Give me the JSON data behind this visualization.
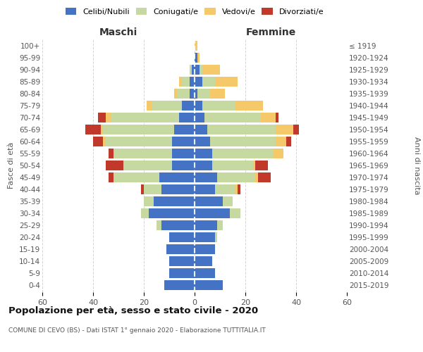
{
  "age_groups": [
    "0-4",
    "5-9",
    "10-14",
    "15-19",
    "20-24",
    "25-29",
    "30-34",
    "35-39",
    "40-44",
    "45-49",
    "50-54",
    "55-59",
    "60-64",
    "65-69",
    "70-74",
    "75-79",
    "80-84",
    "85-89",
    "90-94",
    "95-99",
    "100+"
  ],
  "birth_years": [
    "2015-2019",
    "2010-2014",
    "2005-2009",
    "2000-2004",
    "1995-1999",
    "1990-1994",
    "1985-1989",
    "1980-1984",
    "1975-1979",
    "1970-1974",
    "1965-1969",
    "1960-1964",
    "1955-1959",
    "1950-1954",
    "1945-1949",
    "1940-1944",
    "1935-1939",
    "1930-1934",
    "1925-1929",
    "1920-1924",
    "≤ 1919"
  ],
  "colors": {
    "celibi": "#4472C4",
    "coniugati": "#C6D9A0",
    "vedovi": "#F5C96A",
    "divorziati": "#C0392B"
  },
  "maschi": {
    "celibi": [
      12,
      10,
      10,
      11,
      10,
      13,
      18,
      16,
      13,
      14,
      9,
      9,
      9,
      8,
      6,
      5,
      2,
      2,
      1,
      0,
      0
    ],
    "coniugati": [
      0,
      0,
      0,
      0,
      0,
      2,
      3,
      4,
      7,
      18,
      19,
      23,
      26,
      28,
      27,
      12,
      5,
      3,
      1,
      0,
      0
    ],
    "vedovi": [
      0,
      0,
      0,
      0,
      0,
      0,
      0,
      0,
      0,
      0,
      0,
      0,
      1,
      1,
      2,
      2,
      1,
      1,
      0,
      0,
      0
    ],
    "divorziati": [
      0,
      0,
      0,
      0,
      0,
      0,
      0,
      0,
      1,
      2,
      7,
      2,
      4,
      6,
      3,
      0,
      0,
      0,
      0,
      0,
      0
    ]
  },
  "femmine": {
    "celibi": [
      11,
      8,
      7,
      8,
      8,
      9,
      14,
      11,
      8,
      9,
      7,
      7,
      6,
      5,
      4,
      3,
      1,
      3,
      2,
      1,
      0
    ],
    "coniugati": [
      0,
      0,
      0,
      0,
      1,
      2,
      4,
      4,
      8,
      15,
      16,
      24,
      26,
      27,
      22,
      13,
      5,
      5,
      1,
      0,
      0
    ],
    "vedovi": [
      0,
      0,
      0,
      0,
      0,
      0,
      0,
      0,
      1,
      1,
      1,
      4,
      4,
      7,
      6,
      11,
      6,
      9,
      7,
      1,
      1
    ],
    "divorziati": [
      0,
      0,
      0,
      0,
      0,
      0,
      0,
      0,
      1,
      5,
      5,
      0,
      2,
      2,
      1,
      0,
      0,
      0,
      0,
      0,
      0
    ]
  },
  "xlim": 60,
  "title": "Popolazione per età, sesso e stato civile - 2020",
  "subtitle": "COMUNE DI CEVO (BS) - Dati ISTAT 1° gennaio 2020 - Elaborazione TUTTITALIA.IT",
  "ylabel_left": "Fasce di età",
  "ylabel_right": "Anni di nascita",
  "xlabel_left": "Maschi",
  "xlabel_right": "Femmine"
}
